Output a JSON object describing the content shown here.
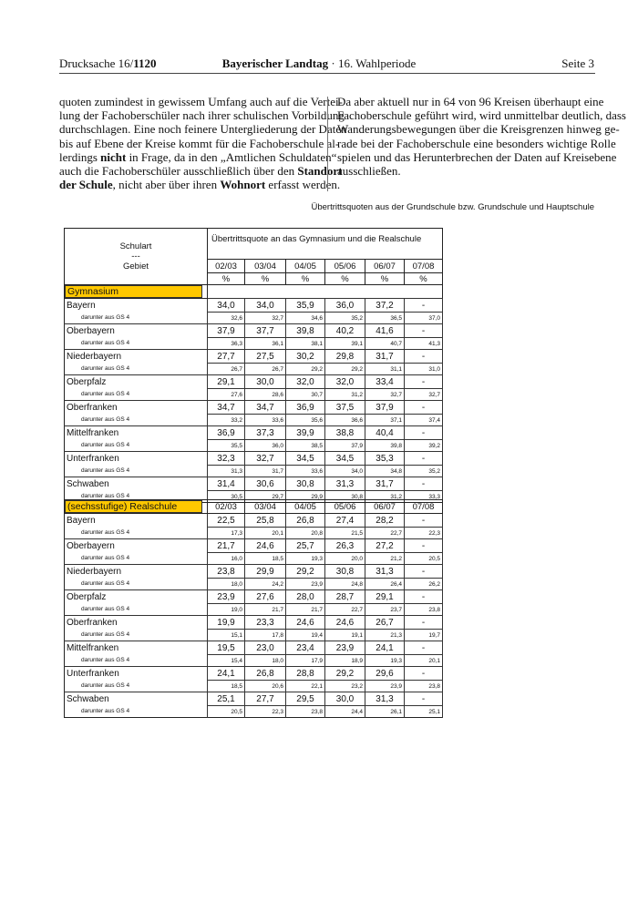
{
  "header": {
    "left": [
      {
        "text": "Drucksache 16/"
      },
      {
        "text": "1120",
        "bold": true
      }
    ],
    "center": [
      {
        "text": "Bayerischer Landtag",
        "bold": true
      },
      {
        "text": " · 16. Wahlperiode"
      }
    ],
    "right": "Seite 3"
  },
  "columns": [
    {
      "lines": [
        [
          {
            "text": "quoten zumindest in gewissem Umfang auch auf die Vertei-"
          }
        ],
        [
          {
            "text": "lung der Fachoberschüler nach ihrer schulischen Vorbildung"
          }
        ],
        [
          {
            "text": "durchschlagen. Eine noch feinere Untergliederung der Daten"
          }
        ],
        [
          {
            "text": "bis auf Ebene der Kreise kommt für die Fachoberschule al-"
          }
        ],
        [
          {
            "text": "lerdings "
          },
          {
            "text": "nicht",
            "bold": true
          },
          {
            "text": " in Frage, da in den „Amtlichen Schuldaten“"
          }
        ],
        [
          {
            "text": "auch die Fachoberschüler ausschließlich über den "
          },
          {
            "text": "Standort",
            "bold": true
          }
        ],
        [
          {
            "text": "der Schule",
            "bold": true
          },
          {
            "text": ", nicht aber über ihren "
          },
          {
            "text": "Wohnort",
            "bold": true
          },
          {
            "text": " erfasst werden."
          }
        ]
      ]
    },
    {
      "lines": [
        [
          {
            "text": "Da aber aktuell nur in 64 von 96 Kreisen überhaupt eine"
          }
        ],
        [
          {
            "text": "Fachoberschule geführt wird, wird unmittelbar deutlich, dass"
          }
        ],
        [
          {
            "text": "Wanderungsbewegungen über die Kreisgrenzen hinweg ge-"
          }
        ],
        [
          {
            "text": "rade bei der Fachoberschule eine besonders wichtige Rolle"
          }
        ],
        [
          {
            "text": "spielen und das Herunterbrechen der Daten auf Kreisebene"
          }
        ],
        [
          {
            "text": "ausschließen."
          }
        ]
      ]
    }
  ],
  "table_caption": "Übertrittsquoten aus der Grundschule bzw. Grundschule und Hauptschule",
  "tables": [
    {
      "corner": [
        "Schulart",
        "---",
        "Gebiet"
      ],
      "heading": "Übertrittsquote an das Gymnasium und die Realschule",
      "years": [
        "02/03",
        "03/04",
        "04/05",
        "05/06",
        "06/07",
        "07/08"
      ],
      "units": [
        "%",
        "%",
        "%",
        "%",
        "%",
        "%"
      ],
      "section": "Gymnasium",
      "rows": [
        {
          "region": "Bayern",
          "values": [
            "34,0",
            "34,0",
            "35,9",
            "36,0",
            "37,2",
            "-"
          ],
          "sub_label": "darunter aus GS 4",
          "sub_values": [
            "32,6",
            "32,7",
            "34,6",
            "35,2",
            "36,5",
            "37,0"
          ]
        },
        {
          "region": "Oberbayern",
          "values": [
            "37,9",
            "37,7",
            "39,8",
            "40,2",
            "41,6",
            "-"
          ],
          "sub_label": "darunter aus GS 4",
          "sub_values": [
            "36,3",
            "36,1",
            "38,1",
            "39,1",
            "40,7",
            "41,3"
          ]
        },
        {
          "region": "Niederbayern",
          "values": [
            "27,7",
            "27,5",
            "30,2",
            "29,8",
            "31,7",
            "-"
          ],
          "sub_label": "darunter aus GS 4",
          "sub_values": [
            "26,7",
            "26,7",
            "29,2",
            "29,2",
            "31,1",
            "31,0"
          ]
        },
        {
          "region": "Oberpfalz",
          "values": [
            "29,1",
            "30,0",
            "32,0",
            "32,0",
            "33,4",
            "-"
          ],
          "sub_label": "darunter aus GS 4",
          "sub_values": [
            "27,6",
            "28,6",
            "30,7",
            "31,2",
            "32,7",
            "32,7"
          ]
        },
        {
          "region": "Oberfranken",
          "values": [
            "34,7",
            "34,7",
            "36,9",
            "37,5",
            "37,9",
            "-"
          ],
          "sub_label": "darunter aus GS 4",
          "sub_values": [
            "33,2",
            "33,6",
            "35,6",
            "36,6",
            "37,1",
            "37,4"
          ]
        },
        {
          "region": "Mittelfranken",
          "values": [
            "36,9",
            "37,3",
            "39,9",
            "38,8",
            "40,4",
            "-"
          ],
          "sub_label": "darunter aus GS 4",
          "sub_values": [
            "35,5",
            "36,0",
            "38,5",
            "37,9",
            "39,8",
            "39,2"
          ]
        },
        {
          "region": "Unterfranken",
          "values": [
            "32,3",
            "32,7",
            "34,5",
            "34,5",
            "35,3",
            "-"
          ],
          "sub_label": "darunter aus GS 4",
          "sub_values": [
            "31,3",
            "31,7",
            "33,6",
            "34,0",
            "34,8",
            "35,2"
          ]
        },
        {
          "region": "Schwaben",
          "values": [
            "31,4",
            "30,6",
            "30,8",
            "31,3",
            "31,7",
            "-"
          ],
          "sub_label": "darunter aus GS 4",
          "sub_values": [
            "30,5",
            "29,7",
            "29,9",
            "30,8",
            "31,2",
            "33,3"
          ]
        }
      ]
    },
    {
      "section": "(sechsstufige) Realschule",
      "years": [
        "02/03",
        "03/04",
        "04/05",
        "05/06",
        "06/07",
        "07/08"
      ],
      "rows": [
        {
          "region": "Bayern",
          "values": [
            "22,5",
            "25,8",
            "26,8",
            "27,4",
            "28,2",
            "-"
          ],
          "sub_label": "darunter aus GS 4",
          "sub_values": [
            "17,3",
            "20,1",
            "20,8",
            "21,5",
            "22,7",
            "22,3"
          ]
        },
        {
          "region": "Oberbayern",
          "values": [
            "21,7",
            "24,6",
            "25,7",
            "26,3",
            "27,2",
            "-"
          ],
          "sub_label": "darunter aus GS 4",
          "sub_values": [
            "16,0",
            "18,5",
            "19,3",
            "20,0",
            "21,2",
            "20,5"
          ]
        },
        {
          "region": "Niederbayern",
          "values": [
            "23,8",
            "29,9",
            "29,2",
            "30,8",
            "31,3",
            "-"
          ],
          "sub_label": "darunter aus GS 4",
          "sub_values": [
            "18,0",
            "24,2",
            "23,9",
            "24,8",
            "26,4",
            "26,2"
          ]
        },
        {
          "region": "Oberpfalz",
          "values": [
            "23,9",
            "27,6",
            "28,0",
            "28,7",
            "29,1",
            "-"
          ],
          "sub_label": "darunter aus GS 4",
          "sub_values": [
            "19,0",
            "21,7",
            "21,7",
            "22,7",
            "23,7",
            "23,8"
          ]
        },
        {
          "region": "Oberfranken",
          "values": [
            "19,9",
            "23,3",
            "24,6",
            "24,6",
            "26,7",
            "-"
          ],
          "sub_label": "darunter aus GS 4",
          "sub_values": [
            "15,1",
            "17,8",
            "19,4",
            "19,1",
            "21,3",
            "19,7"
          ]
        },
        {
          "region": "Mittelfranken",
          "values": [
            "19,5",
            "23,0",
            "23,4",
            "23,9",
            "24,1",
            "-"
          ],
          "sub_label": "darunter aus GS 4",
          "sub_values": [
            "15,4",
            "18,0",
            "17,9",
            "18,9",
            "19,3",
            "20,1"
          ]
        },
        {
          "region": "Unterfranken",
          "values": [
            "24,1",
            "26,8",
            "28,8",
            "29,2",
            "29,6",
            "-"
          ],
          "sub_label": "darunter aus GS 4",
          "sub_values": [
            "18,5",
            "20,6",
            "22,1",
            "23,2",
            "23,9",
            "23,8"
          ]
        },
        {
          "region": "Schwaben",
          "values": [
            "25,1",
            "27,7",
            "29,5",
            "30,0",
            "31,3",
            "-"
          ],
          "sub_label": "darunter aus GS 4",
          "sub_values": [
            "20,5",
            "22,3",
            "23,8",
            "24,4",
            "26,1",
            "25,1"
          ]
        }
      ]
    }
  ]
}
